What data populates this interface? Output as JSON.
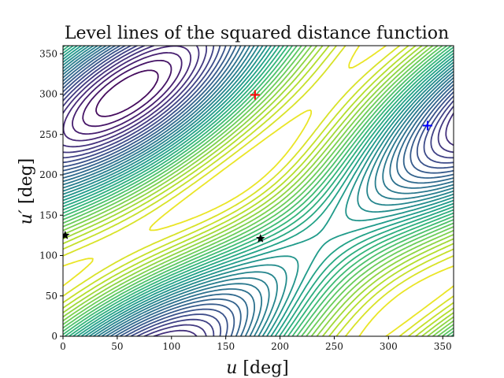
{
  "chart_data": {
    "type": "contour",
    "title": "Level lines of the squared distance function",
    "xlabel_var": "u",
    "xlabel_unit": " [deg]",
    "ylabel_var": "u′",
    "ylabel_unit": " [deg]",
    "xlim": [
      0,
      360
    ],
    "ylim": [
      0,
      360
    ],
    "xticks": [
      "0",
      "50",
      "100",
      "150",
      "200",
      "250",
      "300",
      "350"
    ],
    "yticks": [
      "0",
      "50",
      "100",
      "150",
      "200",
      "250",
      "300",
      "350"
    ],
    "xtick_values": [
      0,
      50,
      100,
      150,
      200,
      250,
      300,
      350
    ],
    "ytick_values": [
      0,
      50,
      100,
      150,
      200,
      250,
      300,
      350
    ],
    "colormap": "viridis",
    "grid": false,
    "markers": [
      {
        "type": "plus",
        "color": "#ff0000",
        "x": 177,
        "y": 299
      },
      {
        "type": "plus",
        "color": "#0000ff",
        "x": 336,
        "y": 261
      },
      {
        "type": "star",
        "color": "#000000",
        "x": 2,
        "y": 125
      },
      {
        "type": "star",
        "color": "#000000",
        "x": 182,
        "y": 121
      }
    ]
  }
}
